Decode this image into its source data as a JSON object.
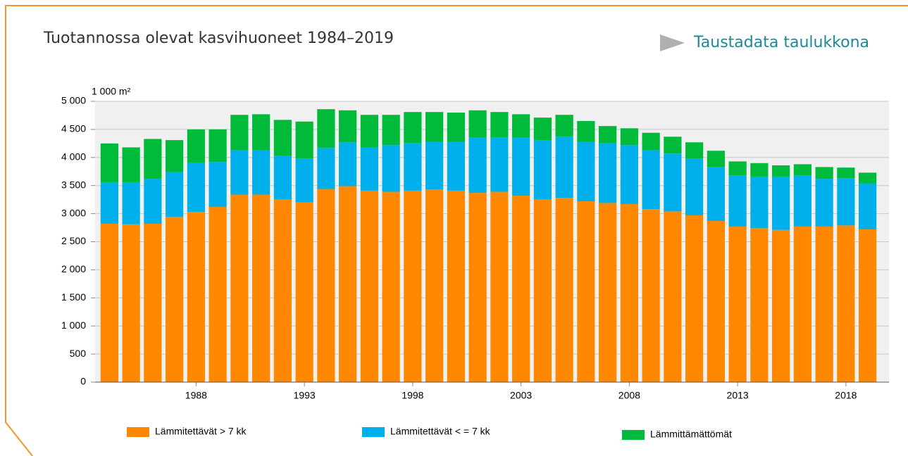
{
  "header": {
    "title": "Tuotannossa olevat kasvihuoneet 1984–2019",
    "link": "Taustadata taulukkona"
  },
  "chart_data": {
    "type": "stacked_bar",
    "y_label": "1 000 m²",
    "categories": [
      null,
      null,
      null,
      null,
      "1988",
      null,
      null,
      null,
      null,
      "1993",
      null,
      null,
      null,
      null,
      "1998",
      null,
      null,
      null,
      null,
      "2003",
      null,
      null,
      null,
      null,
      "2008",
      null,
      null,
      null,
      null,
      "2013",
      null,
      null,
      null,
      null,
      "2018",
      null
    ],
    "series": [
      {
        "name": "Lämmitettävät > 7 kk",
        "color": "#ff8800",
        "values": [
          2820,
          2810,
          2820,
          2940,
          3030,
          3120,
          3340,
          3340,
          3250,
          3200,
          3440,
          3490,
          3410,
          3390,
          3410,
          3430,
          3410,
          3370,
          3390,
          3320,
          3250,
          3280,
          3220,
          3190,
          3170,
          3080,
          3040,
          2970,
          2870,
          2770,
          2740,
          2710,
          2770,
          2770,
          2790,
          2720
        ]
      },
      {
        "name": "Lämmitettävät < = 7 kk",
        "color": "#00b0ec",
        "values": [
          740,
          750,
          800,
          800,
          880,
          800,
          790,
          790,
          780,
          780,
          730,
          780,
          770,
          830,
          850,
          850,
          870,
          980,
          970,
          1030,
          1060,
          1090,
          1060,
          1060,
          1050,
          1050,
          1030,
          1010,
          960,
          910,
          920,
          950,
          910,
          850,
          840,
          820
        ]
      },
      {
        "name": "Lämmittämättömät",
        "color": "#00bb3a",
        "values": [
          690,
          620,
          710,
          570,
          590,
          580,
          630,
          640,
          640,
          660,
          690,
          570,
          580,
          540,
          550,
          530,
          520,
          490,
          450,
          420,
          400,
          390,
          370,
          310,
          300,
          310,
          300,
          290,
          290,
          250,
          240,
          200,
          200,
          210,
          190,
          190
        ]
      }
    ],
    "ylim": [
      0,
      5000
    ],
    "yticks": [
      0,
      500,
      {
        "value": 1000,
        "label": "1 000"
      },
      {
        "value": 1500,
        "label": "1 500"
      },
      {
        "value": 2000,
        "label": "2 000"
      },
      {
        "value": 2500,
        "label": "2 500"
      },
      {
        "value": 3000,
        "label": "3 000"
      },
      {
        "value": 3500,
        "label": "3 500"
      },
      {
        "value": 4000,
        "label": "4 000"
      },
      {
        "value": 4500,
        "label": "4 500"
      },
      {
        "value": 5000,
        "label": "5 000"
      }
    ],
    "grid": true
  }
}
